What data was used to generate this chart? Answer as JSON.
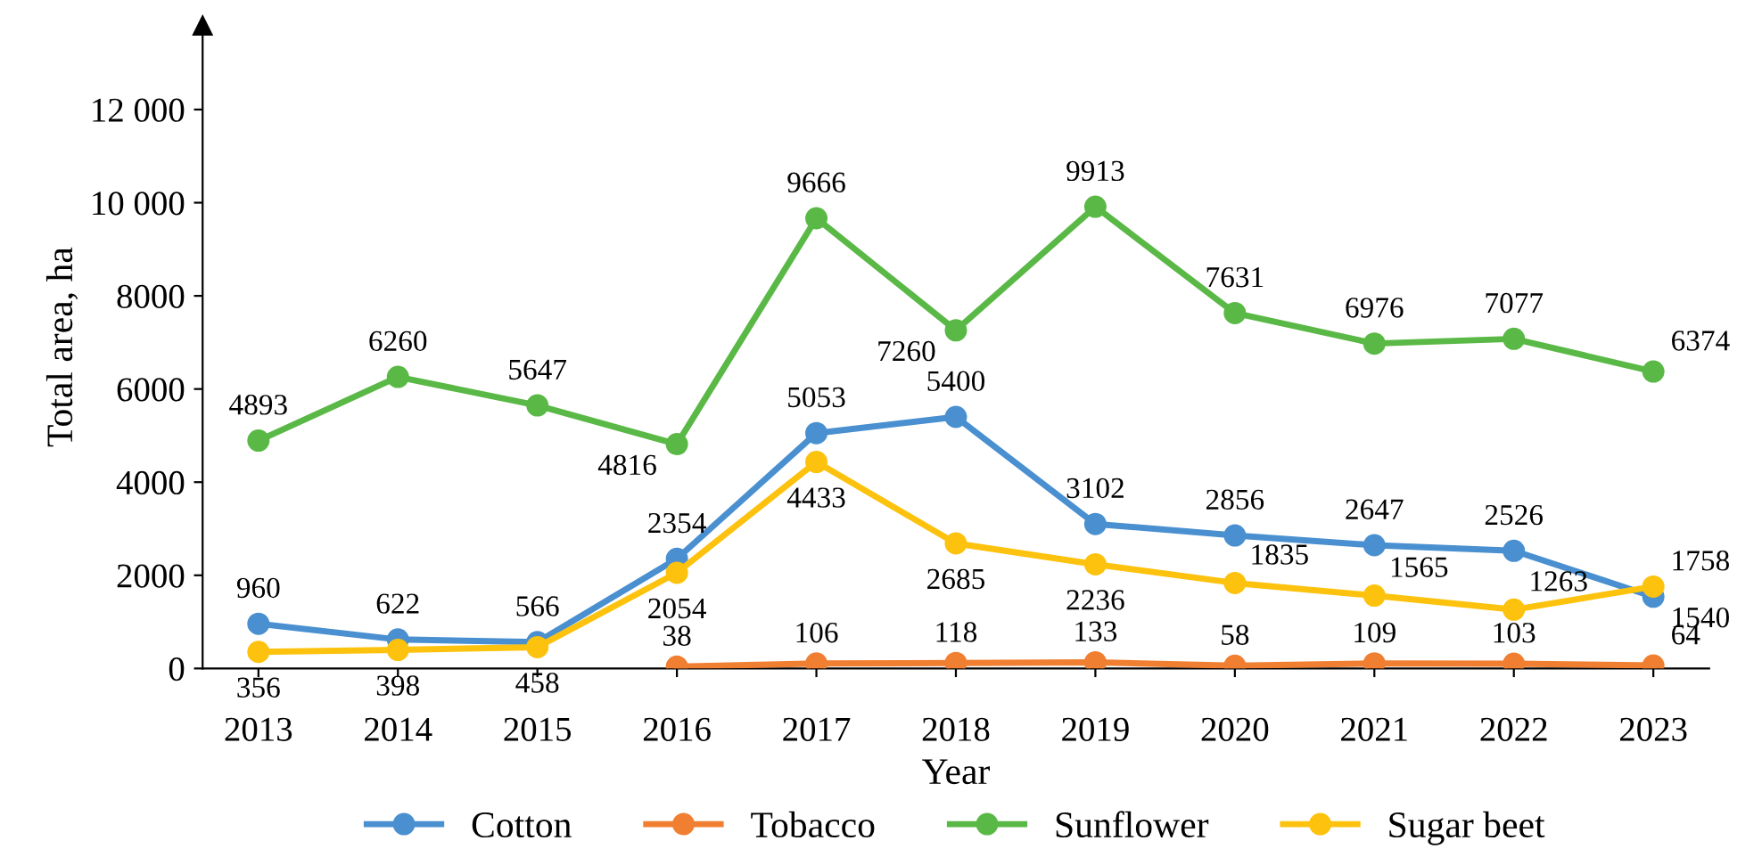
{
  "chart_data": {
    "type": "line",
    "xlabel": "Year",
    "ylabel": "Total area, ha",
    "categories": [
      "2013",
      "2014",
      "2015",
      "2016",
      "2017",
      "2018",
      "2019",
      "2020",
      "2021",
      "2022",
      "2023"
    ],
    "series": [
      {
        "name": "Cotton",
        "color": "#4a90d0",
        "values": [
          960,
          622,
          566,
          2354,
          5053,
          5400,
          3102,
          2856,
          2647,
          2526,
          1540
        ]
      },
      {
        "name": "Tobacco",
        "color": "#f07f31",
        "values": [
          null,
          null,
          null,
          38,
          106,
          118,
          133,
          58,
          109,
          103,
          64
        ]
      },
      {
        "name": "Sunflower",
        "color": "#5ab946",
        "values": [
          4893,
          6260,
          5647,
          4816,
          9666,
          7260,
          9913,
          7631,
          6976,
          7077,
          6374
        ]
      },
      {
        "name": "Sugar beet",
        "color": "#fcc20d",
        "values": [
          356,
          398,
          458,
          2054,
          4433,
          2685,
          2236,
          1835,
          1565,
          1263,
          1758
        ]
      }
    ],
    "ylim": [
      0,
      13800
    ],
    "yticks": [
      0,
      2000,
      4000,
      6000,
      8000,
      {
        "value": 10000,
        "label": "10 000"
      },
      {
        "value": 12000,
        "label": "12 000"
      }
    ],
    "marker": "circle",
    "line_style": "solid",
    "grid": false,
    "legend": "bottom",
    "data_labels": true
  }
}
